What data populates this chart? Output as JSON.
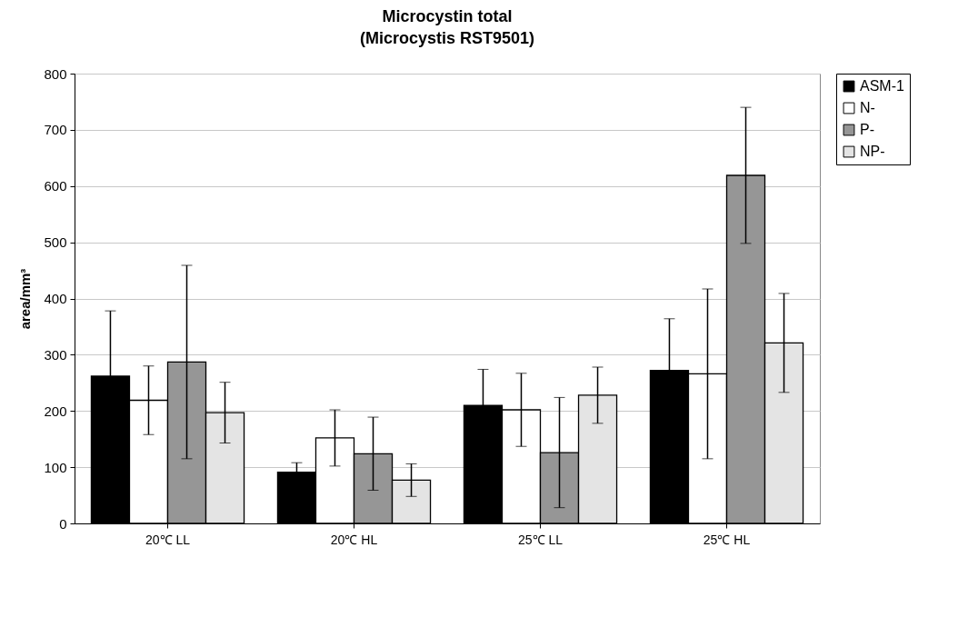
{
  "chart_data": {
    "type": "bar",
    "title": "Microcystin total",
    "subtitle": "(Microcystis RST9501)",
    "ylabel": "area/mm³",
    "categories": [
      "20℃ LL",
      "20℃ HL",
      "25℃ LL",
      "25℃ HL"
    ],
    "series": [
      {
        "name": "ASM-1",
        "color": "#000000",
        "values": [
          262,
          91,
          210,
          272
        ],
        "errors": [
          116,
          17,
          64,
          92
        ]
      },
      {
        "name": "N-",
        "color": "#ffffff",
        "values": [
          219,
          152,
          202,
          266
        ],
        "errors": [
          61,
          50,
          65,
          151
        ]
      },
      {
        "name": "P-",
        "color": "#969696",
        "values": [
          287,
          124,
          126,
          619
        ],
        "errors": [
          172,
          65,
          98,
          121
        ]
      },
      {
        "name": "NP-",
        "color": "#e4e4e4",
        "values": [
          197,
          77,
          228,
          321
        ],
        "errors": [
          54,
          29,
          50,
          88
        ]
      }
    ],
    "ylim": [
      0,
      800
    ],
    "yticks": [
      0,
      100,
      200,
      300,
      400,
      500,
      600,
      700,
      800
    ],
    "grid": "y",
    "legend": "top right"
  }
}
